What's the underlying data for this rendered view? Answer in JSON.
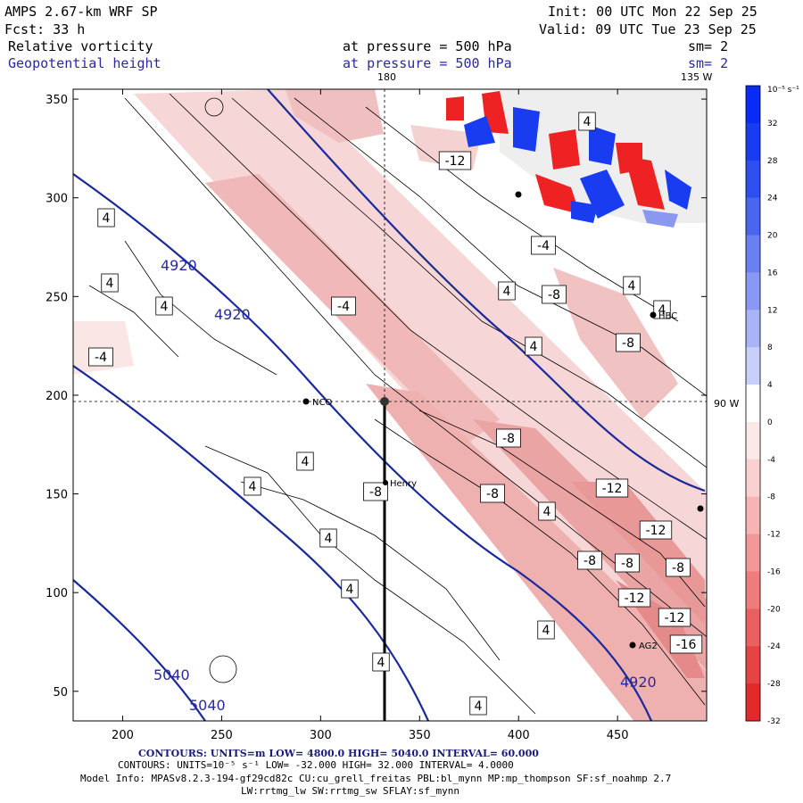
{
  "header": {
    "model": "AMPS 2.67-km WRF SP",
    "fcst": "Fcst:   33 h",
    "init": "Init: 00 UTC Mon 22 Sep 25",
    "valid": "Valid: 09 UTC Tue 23 Sep 25",
    "field1": "Relative vorticity",
    "field1_level": "at pressure =  500 hPa",
    "field1_sm": "sm= 2",
    "field2": "Geopotential height",
    "field2_level": "at pressure =  500 hPa",
    "field2_sm": "sm= 2"
  },
  "map_labels": {
    "lon_top_1": "180",
    "lon_top_2": "135 W",
    "lon_right": "90 W",
    "stations": [
      "NCO",
      "Henry",
      "HBC",
      "AG2"
    ]
  },
  "chart_data": {
    "type": "contour",
    "xlim": [
      175,
      495
    ],
    "ylim": [
      35,
      355
    ],
    "x_ticks": [
      200,
      250,
      300,
      350,
      400,
      450
    ],
    "y_ticks": [
      50,
      100,
      150,
      200,
      250,
      300,
      350
    ],
    "series": [
      {
        "name": "Geopotential height",
        "units": "m",
        "low": 4800.0,
        "high": 5040.0,
        "interval": 60.0,
        "labels": [
          "4920",
          "4920",
          "5040",
          "5040",
          "4920"
        ]
      },
      {
        "name": "Relative vorticity",
        "units": "10^-5 s^-1",
        "low": -32.0,
        "high": 32.0,
        "interval": 4.0,
        "labels": [
          "4",
          "4",
          "4",
          "-4",
          "-4",
          "-4",
          "4",
          "4",
          "4",
          "-12",
          "4",
          "-8",
          "4",
          "-8",
          "-8",
          "-8",
          "4",
          "4",
          "4",
          "-8",
          "-12",
          "-8",
          "-8",
          "-12",
          "-8",
          "-12",
          "-16",
          "4",
          "-12",
          "4",
          "4",
          "4",
          "4"
        ]
      }
    ],
    "colorbar": {
      "units": "10⁻⁵ s⁻¹",
      "ticks": [
        32,
        28,
        24,
        20,
        16,
        12,
        8,
        4,
        0,
        -4,
        -8,
        -12,
        -16,
        -20,
        -24,
        -28,
        -32
      ]
    }
  },
  "footer": {
    "contours1": "CONTOURS:  UNITS=m  LOW=  4800.0        HIGH=  5040.0        INTERVAL=   60.000",
    "contours2": "CONTOURS:  UNITS=10⁻⁵ s⁻¹  LOW=  -32.000        HIGH=  32.000        INTERVAL=   4.0000",
    "model_info": "Model Info: MPASv8.2.3-194-gf29cd82c CU:cu_grell_freitas PBL:bl_mynn MP:mp_thompson SF:sf_noahmp 2.7",
    "model_info2": "LW:rrtmg_lw SW:rrtmg_sw SFLAY:sf_mynn"
  },
  "colors": {
    "height_contour": "#1a2a9a",
    "neg_vort": "#e33",
    "pos_vort": "#1a3cf0"
  }
}
